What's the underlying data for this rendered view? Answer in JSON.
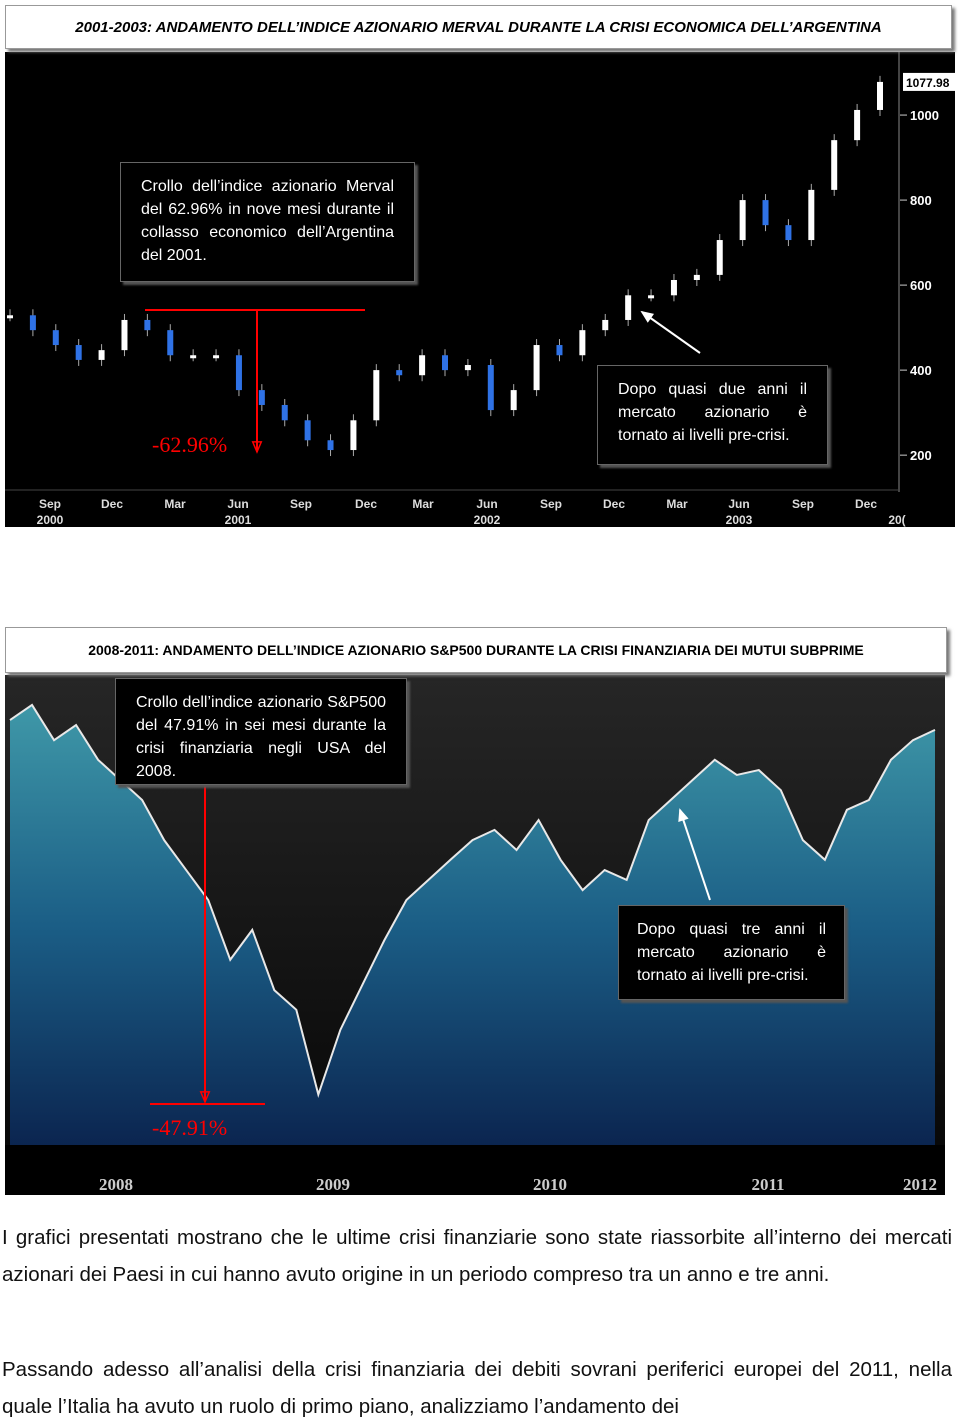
{
  "figures": [
    {
      "type": "candlestick",
      "title": "2001-2003: ANDAMENTO DELL’INDICE AZIONARIO MERVAL DURANTE LA CRISI ECONOMICA DELL’ARGENTINA",
      "annotations": [
        "Crollo dell’indice azionario Merval del 62.96% in nove mesi durante il collasso economico dell’Argentina del 2001.",
        "Dopo quasi due anni il mercato azionario è tornato ai livelli pre-crisi."
      ],
      "drop_label": "-62.96%",
      "x_labels": [
        {
          "label": "Sep",
          "year": "2000"
        },
        {
          "label": "Dec"
        },
        {
          "label": "Mar"
        },
        {
          "label": "Jun",
          "year": "2001"
        },
        {
          "label": "Sep"
        },
        {
          "label": "Dec"
        },
        {
          "label": "Mar"
        },
        {
          "label": "Jun",
          "year": "2002"
        },
        {
          "label": "Sep"
        },
        {
          "label": "Dec"
        },
        {
          "label": "Mar"
        },
        {
          "label": "Jun",
          "year": "2003"
        },
        {
          "label": "Sep"
        },
        {
          "label": "Dec"
        },
        {
          "year": "20("
        }
      ],
      "ylim": [
        118,
        1106
      ],
      "yticks": [
        200,
        400,
        600,
        800,
        1000
      ],
      "last_value": 1077.98,
      "values": [
        529,
        494,
        459,
        424,
        447,
        518,
        494,
        435,
        435,
        435,
        353,
        318,
        282,
        235,
        212,
        282,
        400,
        388,
        435,
        400,
        412,
        306,
        353,
        459,
        435,
        494,
        518,
        576,
        576,
        612,
        624,
        706,
        800,
        741,
        706,
        824,
        941,
        1012,
        1077.98
      ]
    },
    {
      "type": "area",
      "title": "2008-2011: ANDAMENTO DELL’INDICE AZIONARIO S&P500 DURANTE LA CRISI FINANZIARIA DEI MUTUI SUBPRIME",
      "annotations": [
        "Crollo dell’indice azionario S&P500 del 47.91% in sei mesi durante la crisi finanziaria negli USA del 2008.",
        "Dopo quasi tre anni il mercato azionario è tornato ai livelli pre-crisi."
      ],
      "drop_label": "-47.91%",
      "x_labels": [
        "2008",
        "2009",
        "2010",
        "2011",
        "2012"
      ],
      "ylim": [
        563,
        1560
      ],
      "values": [
        1515,
        1549,
        1470,
        1504,
        1426,
        1381,
        1336,
        1246,
        1179,
        1112,
        978,
        1045,
        910,
        866,
        676,
        821,
        922,
        1022,
        1112,
        1157,
        1202,
        1246,
        1269,
        1224,
        1291,
        1202,
        1134,
        1179,
        1157,
        1291,
        1336,
        1381,
        1426,
        1392,
        1403,
        1358,
        1246,
        1202,
        1314,
        1336,
        1426,
        1470,
        1493
      ]
    }
  ],
  "paragraphs": [
    "I grafici presentati mostrano che le ultime crisi finanziarie sono state riassorbite all’interno dei mercati azionari dei Paesi in cui hanno avuto origine in un periodo compreso tra un anno e tre anni.",
    "Passando adesso all’analisi della crisi finanziaria dei debiti sovrani periferici europei del 2011, nella quale l’Italia ha avuto un ruolo di primo piano, analizziamo l’andamento dei"
  ]
}
